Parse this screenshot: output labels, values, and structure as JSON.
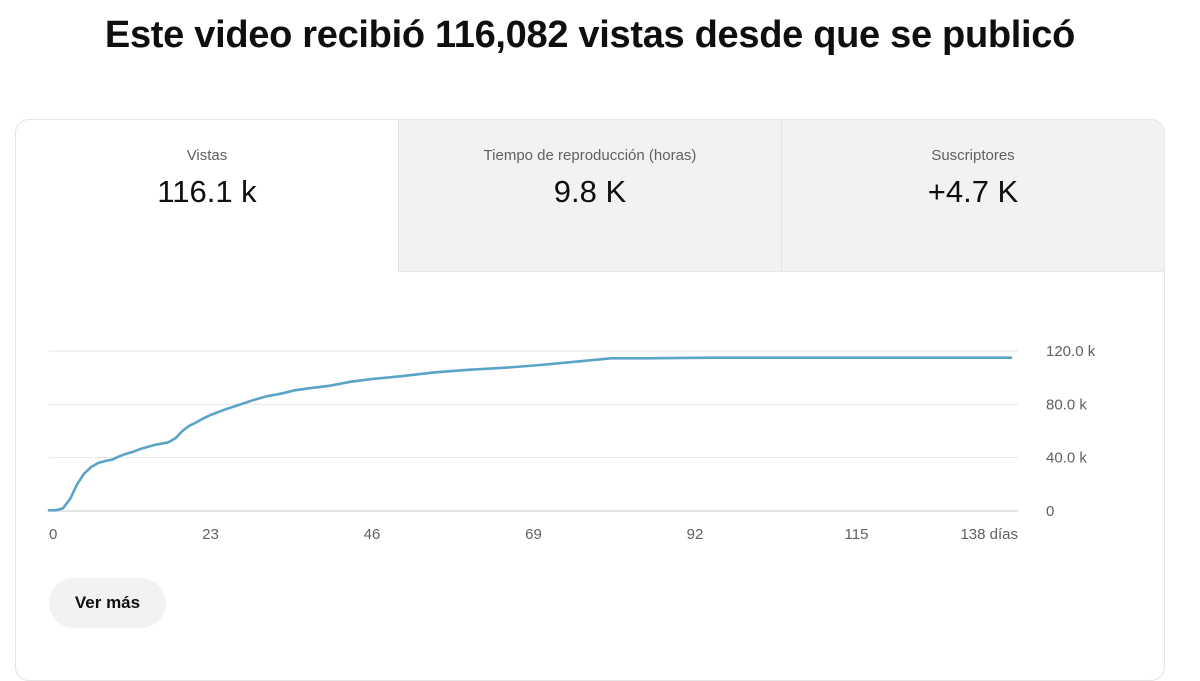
{
  "headline": "Este video recibió 116,082 vistas desde que se publicó",
  "tabs": [
    {
      "label": "Vistas",
      "value": "116.1 k",
      "active": true
    },
    {
      "label": "Tiempo de reproducción (horas)",
      "value": "9.8 K",
      "active": false
    },
    {
      "label": "Suscriptores",
      "value": "+4.7 K",
      "active": false
    }
  ],
  "more_button": "Ver más",
  "colors": {
    "line": "#5ba3c7",
    "inactive_tab": "#f2f2f2",
    "border": "#e5e5e5"
  },
  "chart_data": {
    "type": "line",
    "title": "",
    "xlabel": "",
    "ylabel": "",
    "xlim": [
      0,
      138
    ],
    "ylim": [
      0,
      120000
    ],
    "grid": true,
    "x_ticks": [
      {
        "value": 0,
        "label": "0"
      },
      {
        "value": 23,
        "label": "23"
      },
      {
        "value": 46,
        "label": "46"
      },
      {
        "value": 69,
        "label": "69"
      },
      {
        "value": 92,
        "label": "92"
      },
      {
        "value": 115,
        "label": "115"
      },
      {
        "value": 138,
        "label": "138 días"
      }
    ],
    "y_ticks": [
      {
        "value": 0,
        "label": "0"
      },
      {
        "value": 40000,
        "label": "40.0 k"
      },
      {
        "value": 80000,
        "label": "80.0 k"
      },
      {
        "value": 120000,
        "label": "120.0 k"
      }
    ],
    "series": [
      {
        "x": [
          0,
          1,
          2,
          3,
          4,
          5,
          6,
          7,
          8,
          9,
          10,
          11,
          12,
          13,
          14,
          15,
          16,
          17,
          18,
          19,
          20,
          21,
          22,
          23,
          25,
          27,
          29,
          31,
          33,
          35,
          37,
          40,
          43,
          46,
          50,
          55,
          60,
          65,
          70,
          75,
          78,
          80,
          85,
          90,
          95,
          100,
          110,
          120,
          130,
          137
        ],
        "y": [
          500,
          500,
          2000,
          9000,
          20000,
          28000,
          33000,
          36000,
          37500,
          38500,
          41000,
          43000,
          44500,
          46500,
          48000,
          49500,
          50500,
          51500,
          54500,
          60000,
          64000,
          66500,
          69500,
          72000,
          76000,
          79500,
          83000,
          86000,
          88000,
          90500,
          92000,
          94000,
          97000,
          99000,
          101000,
          104000,
          106000,
          107500,
          109500,
          112000,
          113500,
          114500,
          114500,
          114800,
          115000,
          115000,
          115000,
          115000,
          115000,
          115000
        ]
      }
    ]
  }
}
